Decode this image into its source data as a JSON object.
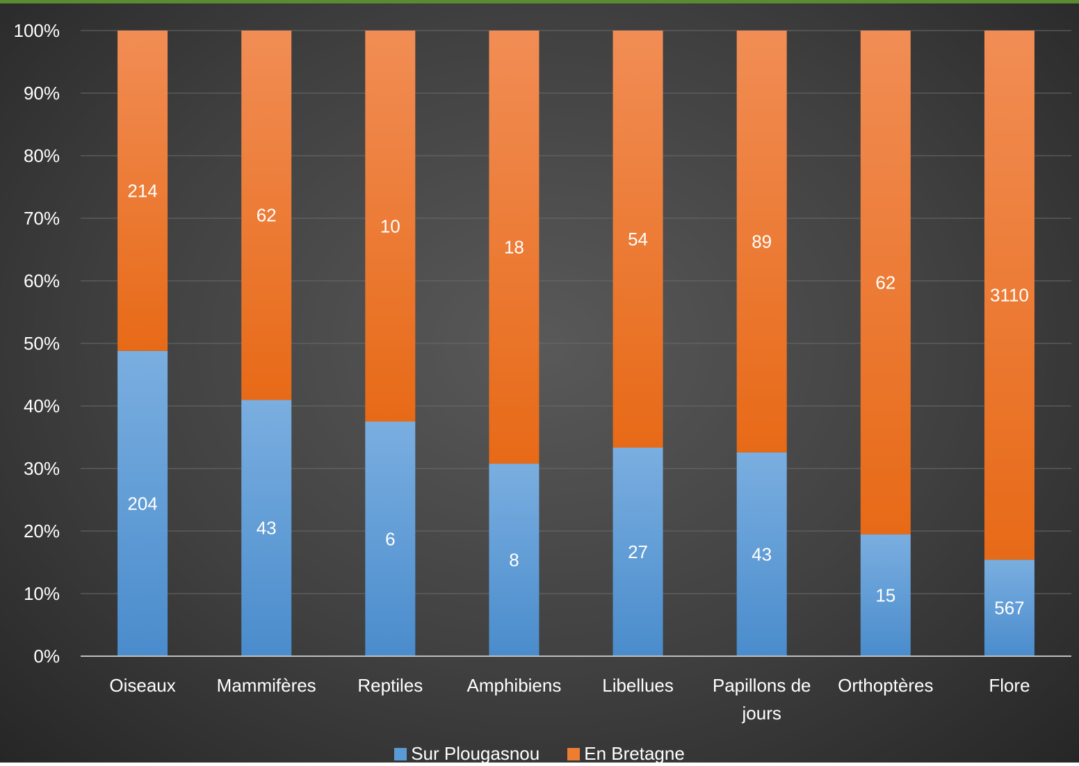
{
  "chart_data": {
    "type": "bar",
    "stacked": "percent",
    "categories": [
      "Oiseaux",
      "Mammifères",
      "Reptiles",
      "Amphibiens",
      "Libellues",
      "Papillons de jours",
      "Orthoptères",
      "Flore"
    ],
    "category_lines": [
      [
        "Oiseaux"
      ],
      [
        "Mammifères"
      ],
      [
        "Reptiles"
      ],
      [
        "Amphibiens"
      ],
      [
        "Libellues"
      ],
      [
        "Papillons de",
        "jours"
      ],
      [
        "Orthoptères"
      ],
      [
        "Flore"
      ]
    ],
    "series": [
      {
        "name": "Sur Plougasnou",
        "values": [
          204,
          43,
          6,
          8,
          27,
          43,
          15,
          567
        ],
        "color": "#5b9bd5"
      },
      {
        "name": "En Bretagne",
        "values": [
          214,
          62,
          10,
          18,
          54,
          89,
          62,
          3110
        ],
        "color": "#ed7d31"
      }
    ],
    "y_ticks": [
      "0%",
      "10%",
      "20%",
      "30%",
      "40%",
      "50%",
      "60%",
      "70%",
      "80%",
      "90%",
      "100%"
    ],
    "ylim": [
      0,
      100
    ],
    "grid": true,
    "legend_position": "bottom",
    "title": "",
    "xlabel": "",
    "ylabel": ""
  },
  "legend": {
    "items": [
      {
        "label": "Sur Plougasnou",
        "color": "#5b9bd5"
      },
      {
        "label": "En Bretagne",
        "color": "#ed7d31"
      }
    ]
  }
}
